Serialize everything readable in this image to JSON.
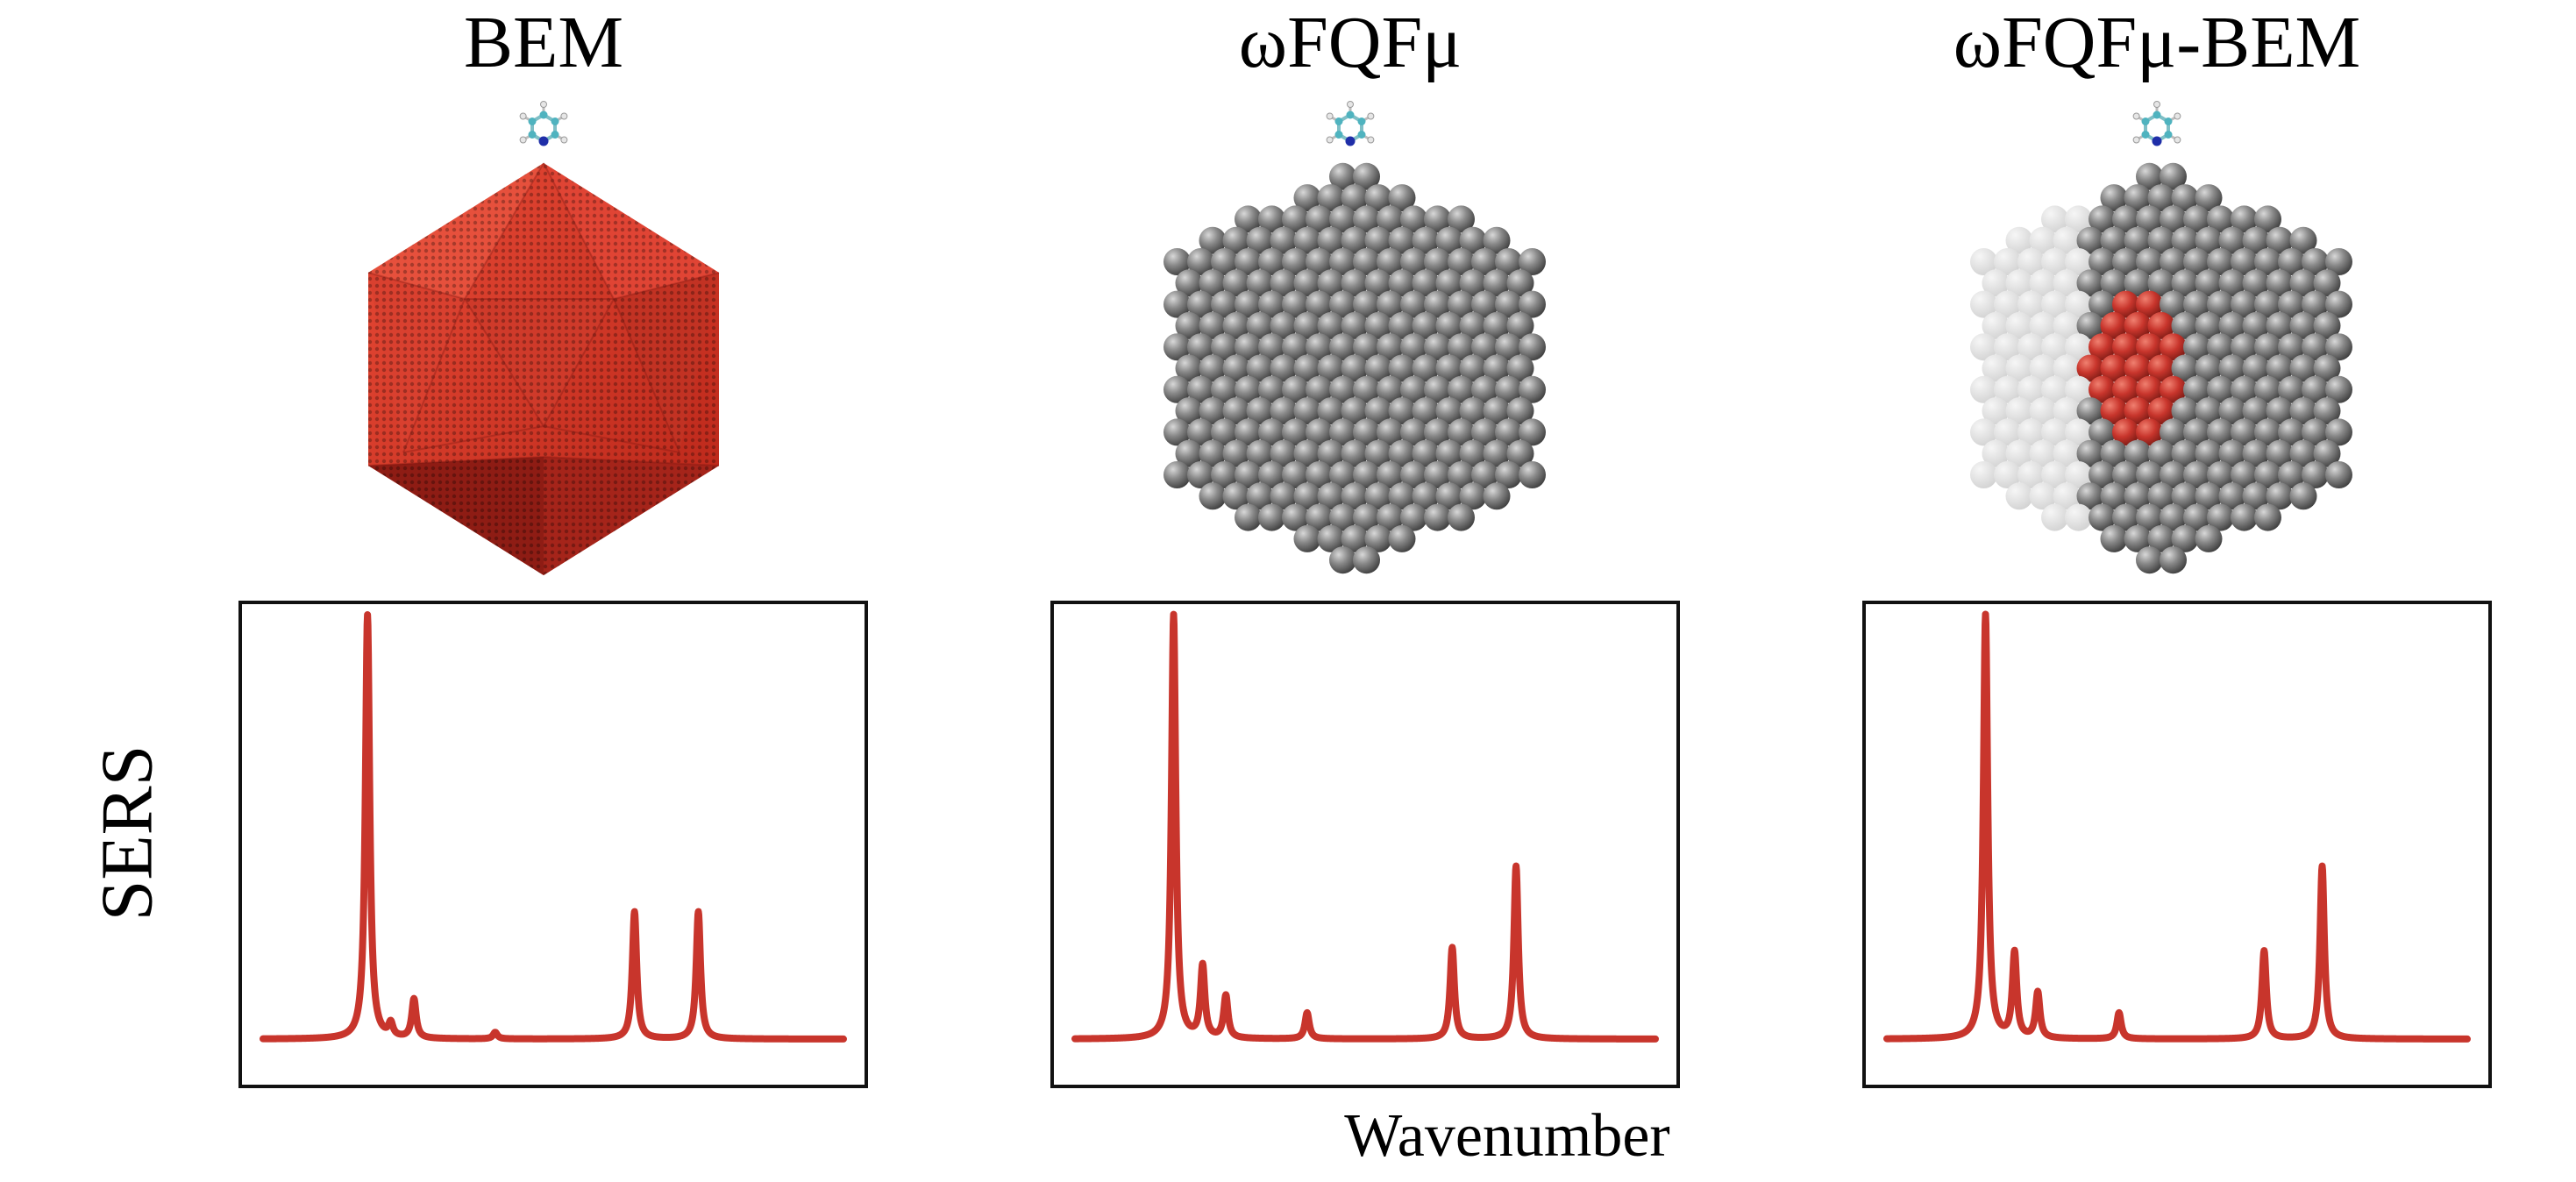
{
  "panels": [
    {
      "title": "BEM"
    },
    {
      "title": "ωFQFμ"
    },
    {
      "title": "ωFQFμ-BEM"
    }
  ],
  "colors": {
    "bem_red": "#d63a2b",
    "bem_red_dark": "#8e1c14",
    "atom_grey": "#6b6b6b",
    "atom_grey_light": "#dcdcdc",
    "spectrum": "#c8352c",
    "molecule_c": "#4fb3bf",
    "molecule_n": "#1f2ea8"
  },
  "chart_data": [
    {
      "type": "line",
      "title": "BEM",
      "xlabel": "Wavenumber",
      "ylabel": "SERS",
      "peaks": [
        {
          "x": 0.18,
          "height": 1.3
        },
        {
          "x": 0.22,
          "height": 0.04
        },
        {
          "x": 0.26,
          "height": 0.12
        },
        {
          "x": 0.4,
          "height": 0.02
        },
        {
          "x": 0.64,
          "height": 0.39
        },
        {
          "x": 0.75,
          "height": 0.39
        }
      ],
      "xlim": [
        0,
        1
      ],
      "ylim": [
        0,
        1
      ]
    },
    {
      "type": "line",
      "title": "ωFQFμ",
      "xlabel": "Wavenumber",
      "ylabel": "SERS",
      "peaks": [
        {
          "x": 0.17,
          "height": 1.3
        },
        {
          "x": 0.22,
          "height": 0.22
        },
        {
          "x": 0.26,
          "height": 0.13
        },
        {
          "x": 0.4,
          "height": 0.08
        },
        {
          "x": 0.65,
          "height": 0.28
        },
        {
          "x": 0.76,
          "height": 0.53
        }
      ],
      "xlim": [
        0,
        1
      ],
      "ylim": [
        0,
        1
      ]
    },
    {
      "type": "line",
      "title": "ωFQFμ-BEM",
      "xlabel": "Wavenumber",
      "ylabel": "SERS",
      "peaks": [
        {
          "x": 0.17,
          "height": 1.3
        },
        {
          "x": 0.22,
          "height": 0.26
        },
        {
          "x": 0.26,
          "height": 0.14
        },
        {
          "x": 0.4,
          "height": 0.08
        },
        {
          "x": 0.65,
          "height": 0.27
        },
        {
          "x": 0.75,
          "height": 0.53
        }
      ],
      "xlim": [
        0,
        1
      ],
      "ylim": [
        0,
        1
      ]
    }
  ],
  "axis_labels": {
    "y": "SERS",
    "x": "Wavenumber"
  }
}
